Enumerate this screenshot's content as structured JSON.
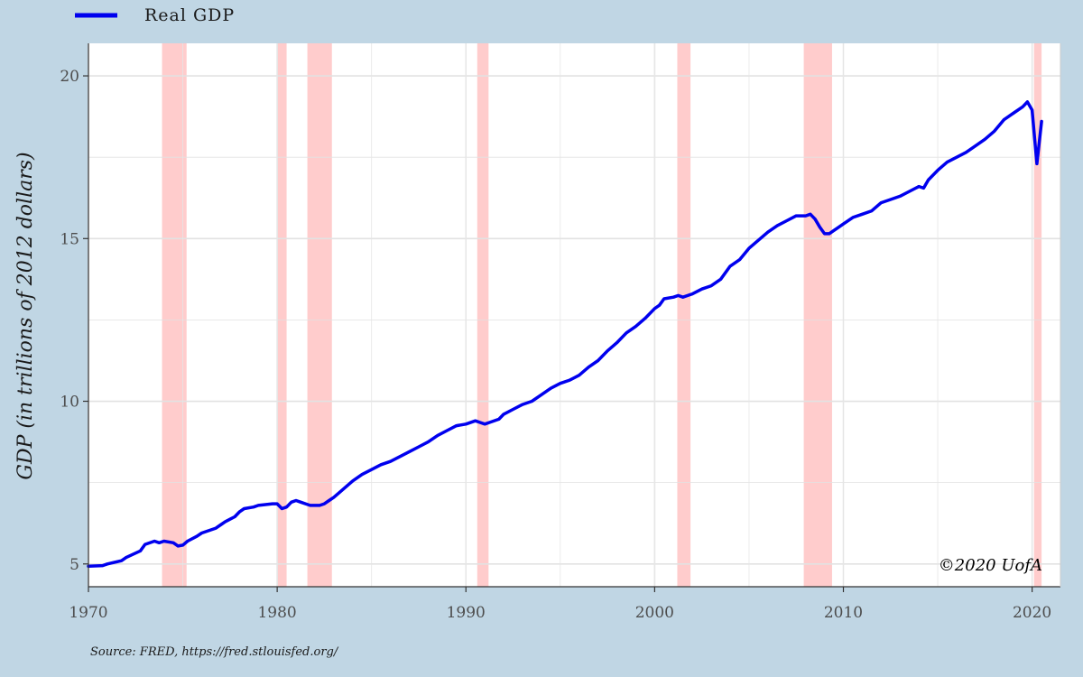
{
  "chart_data": {
    "type": "line",
    "legend": {
      "entries": [
        "Real GDP"
      ],
      "placement": "top-left"
    },
    "series": [
      {
        "name": "Real GDP",
        "color": "#0000ee",
        "x": [
          1970.0,
          1970.75,
          1971.0,
          1971.75,
          1972.0,
          1972.75,
          1973.0,
          1973.5,
          1973.75,
          1974.0,
          1974.5,
          1974.75,
          1975.0,
          1975.25,
          1975.75,
          1976.0,
          1976.75,
          1977.0,
          1977.25,
          1977.75,
          1978.0,
          1978.25,
          1978.75,
          1979.0,
          1979.75,
          1980.0,
          1980.25,
          1980.5,
          1980.75,
          1981.0,
          1981.25,
          1981.5,
          1981.75,
          1982.0,
          1982.25,
          1982.5,
          1982.75,
          1983.0,
          1983.5,
          1984.0,
          1984.5,
          1985.0,
          1985.5,
          1986.0,
          1986.5,
          1987.0,
          1987.5,
          1988.0,
          1988.5,
          1989.0,
          1989.5,
          1990.0,
          1990.5,
          1990.75,
          1991.0,
          1991.25,
          1991.75,
          1992.0,
          1992.5,
          1993.0,
          1993.5,
          1994.0,
          1994.5,
          1995.0,
          1995.5,
          1996.0,
          1996.5,
          1997.0,
          1997.5,
          1998.0,
          1998.5,
          1999.0,
          1999.5,
          2000.0,
          2000.25,
          2000.5,
          2001.0,
          2001.25,
          2001.5,
          2001.75,
          2002.0,
          2002.5,
          2003.0,
          2003.5,
          2004.0,
          2004.5,
          2005.0,
          2005.5,
          2006.0,
          2006.5,
          2007.0,
          2007.5,
          2008.0,
          2008.25,
          2008.5,
          2008.75,
          2009.0,
          2009.25,
          2009.5,
          2009.75,
          2010.0,
          2010.5,
          2011.0,
          2011.5,
          2012.0,
          2012.5,
          2013.0,
          2013.5,
          2014.0,
          2014.25,
          2014.5,
          2015.0,
          2015.5,
          2016.0,
          2016.5,
          2017.0,
          2017.5,
          2018.0,
          2018.5,
          2019.0,
          2019.5,
          2019.75,
          2020.0,
          2020.25,
          2020.5
        ],
        "values": [
          4.93,
          4.95,
          5.0,
          5.1,
          5.2,
          5.4,
          5.6,
          5.7,
          5.65,
          5.7,
          5.65,
          5.55,
          5.58,
          5.7,
          5.85,
          5.95,
          6.1,
          6.2,
          6.3,
          6.45,
          6.6,
          6.7,
          6.75,
          6.8,
          6.85,
          6.85,
          6.7,
          6.75,
          6.9,
          6.95,
          6.9,
          6.85,
          6.8,
          6.8,
          6.8,
          6.85,
          6.95,
          7.05,
          7.3,
          7.55,
          7.75,
          7.9,
          8.05,
          8.15,
          8.3,
          8.45,
          8.6,
          8.75,
          8.95,
          9.1,
          9.25,
          9.3,
          9.4,
          9.35,
          9.3,
          9.35,
          9.45,
          9.6,
          9.75,
          9.9,
          10.0,
          10.2,
          10.4,
          10.55,
          10.65,
          10.8,
          11.05,
          11.25,
          11.55,
          11.8,
          12.1,
          12.3,
          12.55,
          12.85,
          12.95,
          13.15,
          13.2,
          13.25,
          13.2,
          13.25,
          13.3,
          13.45,
          13.55,
          13.75,
          14.15,
          14.35,
          14.7,
          14.95,
          15.2,
          15.4,
          15.55,
          15.7,
          15.7,
          15.75,
          15.6,
          15.35,
          15.15,
          15.15,
          15.25,
          15.35,
          15.45,
          15.65,
          15.75,
          15.85,
          16.1,
          16.2,
          16.3,
          16.45,
          16.6,
          16.55,
          16.8,
          17.1,
          17.35,
          17.5,
          17.65,
          17.85,
          18.05,
          18.3,
          18.65,
          18.85,
          19.05,
          19.2,
          18.95,
          17.3,
          18.6
        ]
      }
    ],
    "recessions": [
      [
        1973.9,
        1975.2
      ],
      [
        1980.0,
        1980.5
      ],
      [
        1981.6,
        1982.9
      ],
      [
        1990.6,
        1991.2
      ],
      [
        2001.2,
        2001.9
      ],
      [
        2007.9,
        2009.4
      ],
      [
        2020.1,
        2020.5
      ]
    ],
    "recession_color": "#ffcccc",
    "xlim": [
      1970,
      2021.5
    ],
    "ylim": [
      4.3,
      21
    ],
    "xticks": [
      1970,
      1980,
      1990,
      2000,
      2010,
      2020
    ],
    "yticks": [
      5,
      10,
      15,
      20
    ],
    "xtick_labels": [
      "1970",
      "1980",
      "1990",
      "2000",
      "2010",
      "2020"
    ],
    "ytick_labels": [
      "5",
      "10",
      "15",
      "20"
    ],
    "ylabel": "GDP (in trillions of 2012 dollars)",
    "xlabel": "",
    "grid": true,
    "annotation": "©2020 UofA",
    "source": "Source: FRED, https://fred.stlouisfed.org/"
  }
}
